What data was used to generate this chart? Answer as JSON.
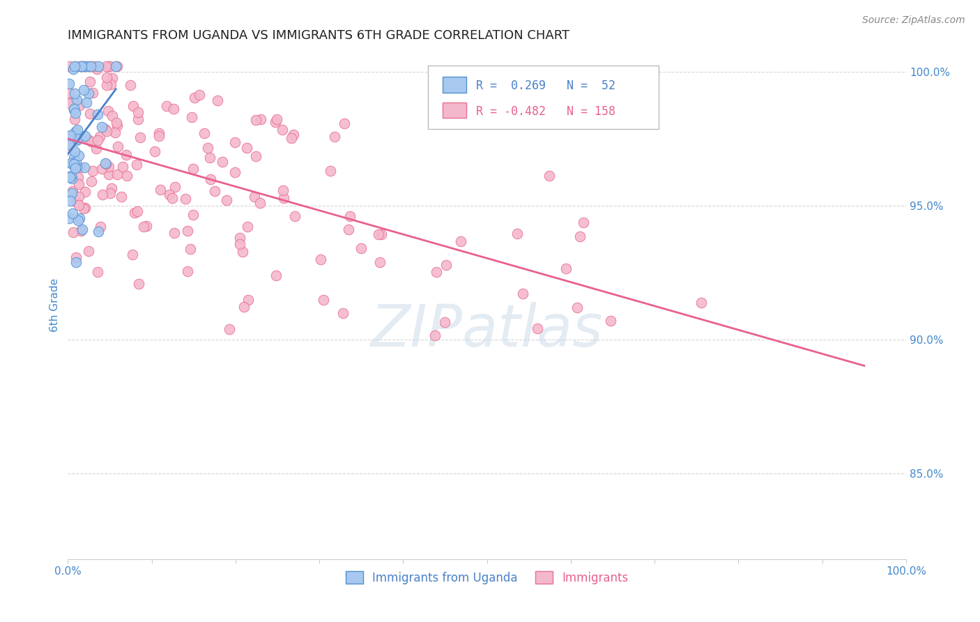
{
  "title": "IMMIGRANTS FROM UGANDA VS IMMIGRANTS 6TH GRADE CORRELATION CHART",
  "source_text": "Source: ZipAtlas.com",
  "ylabel": "6th Grade",
  "xlim": [
    0.0,
    1.0
  ],
  "ylim": [
    0.818,
    1.008
  ],
  "x_tick_labels": [
    "0.0%",
    "",
    "",
    "",
    "",
    "",
    "",
    "",
    "",
    "",
    "100.0%"
  ],
  "x_tick_positions": [
    0.0,
    0.1,
    0.2,
    0.3,
    0.4,
    0.5,
    0.6,
    0.7,
    0.8,
    0.9,
    1.0
  ],
  "y_tick_labels": [
    "85.0%",
    "90.0%",
    "95.0%",
    "100.0%"
  ],
  "y_tick_positions": [
    0.85,
    0.9,
    0.95,
    1.0
  ],
  "legend_labels": [
    "Immigrants from Uganda",
    "Immigrants"
  ],
  "blue_R": 0.269,
  "blue_N": 52,
  "pink_R": -0.482,
  "pink_N": 158,
  "blue_color": "#a8c8f0",
  "pink_color": "#f4b8cc",
  "blue_edge_color": "#5090d0",
  "pink_edge_color": "#e87090",
  "blue_line_color": "#4a80c8",
  "pink_line_color": "#e86090",
  "title_color": "#222222",
  "axis_label_color": "#4488cc",
  "tick_label_color": "#4488cc",
  "watermark_color": "#c8d8e8",
  "grid_color": "#cccccc",
  "seed_blue": 7,
  "seed_pink": 13
}
